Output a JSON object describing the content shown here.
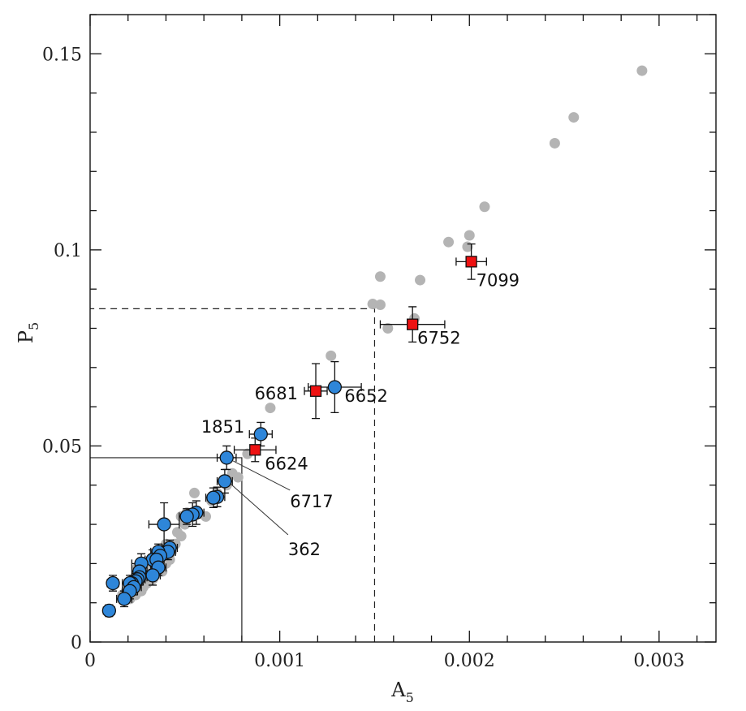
{
  "chart_data": {
    "type": "scatter",
    "title": "",
    "xlabel": {
      "main": "A",
      "sub": "5"
    },
    "ylabel": {
      "main": "P",
      "sub": "5"
    },
    "xlim": [
      0,
      0.0033
    ],
    "ylim": [
      0,
      0.16
    ],
    "x_ticks": [
      {
        "value": 0,
        "label": "0"
      },
      {
        "value": 0.001,
        "label": "0.001"
      },
      {
        "value": 0.002,
        "label": "0.002"
      },
      {
        "value": 0.003,
        "label": "0.003"
      }
    ],
    "y_ticks": [
      {
        "value": 0,
        "label": "0"
      },
      {
        "value": 0.05,
        "label": "0.05"
      },
      {
        "value": 0.1,
        "label": "0.1"
      },
      {
        "value": 0.15,
        "label": "0.15"
      }
    ],
    "x_minor_step": 0.0002,
    "y_minor_step": 0.01,
    "colors": {
      "grey": "#b4b4b4",
      "blue": "#2e86d9",
      "red": "#ee1111",
      "axis": "#111111"
    },
    "reference_lines": [
      {
        "style": "solid",
        "x": 0.0008,
        "y": 0.047
      },
      {
        "style": "dashed",
        "x": 0.0015,
        "y": 0.085
      }
    ],
    "series": [
      {
        "name": "grey points",
        "marker": "circle",
        "points": [
          [
            0.00291,
            0.1457
          ],
          [
            0.00255,
            0.1338
          ],
          [
            0.00245,
            0.1272
          ],
          [
            0.00208,
            0.111
          ],
          [
            0.002,
            0.1037
          ],
          [
            0.00199,
            0.1008
          ],
          [
            0.00189,
            0.102
          ],
          [
            0.00174,
            0.0923
          ],
          [
            0.00153,
            0.0932
          ],
          [
            0.00153,
            0.086
          ],
          [
            0.00149,
            0.0862
          ],
          [
            0.00157,
            0.08
          ],
          [
            0.00171,
            0.0825
          ],
          [
            0.00127,
            0.073
          ],
          [
            0.00095,
            0.0597
          ],
          [
            0.00083,
            0.048
          ],
          [
            0.00078,
            0.042
          ],
          [
            0.00075,
            0.043
          ],
          [
            0.00072,
            0.04
          ],
          [
            0.00067,
            0.038
          ],
          [
            0.00064,
            0.036
          ],
          [
            0.00061,
            0.032
          ],
          [
            0.00055,
            0.038
          ],
          [
            0.00054,
            0.033
          ],
          [
            0.00051,
            0.033
          ],
          [
            0.0005,
            0.03
          ],
          [
            0.00048,
            0.032
          ],
          [
            0.00048,
            0.027
          ],
          [
            0.00046,
            0.028
          ],
          [
            0.00045,
            0.025
          ],
          [
            0.00043,
            0.023
          ],
          [
            0.00042,
            0.021
          ],
          [
            0.0004,
            0.025
          ],
          [
            0.0004,
            0.02
          ],
          [
            0.00038,
            0.018
          ],
          [
            0.00037,
            0.022
          ],
          [
            0.00035,
            0.019
          ],
          [
            0.00033,
            0.016
          ],
          [
            0.00031,
            0.018
          ],
          [
            0.0003,
            0.015
          ],
          [
            0.00028,
            0.014
          ],
          [
            0.00027,
            0.013
          ],
          [
            0.00025,
            0.019
          ],
          [
            0.00024,
            0.012
          ],
          [
            0.00022,
            0.015
          ],
          [
            0.00021,
            0.011
          ],
          [
            0.00019,
            0.013
          ],
          [
            0.00017,
            0.012
          ]
        ]
      },
      {
        "name": "blue points",
        "marker": "circle",
        "points": [
          {
            "x": 0.00129,
            "y": 0.065,
            "xerr": 0.00014,
            "yerr": 0.0065,
            "label": "6652"
          },
          {
            "x": 0.0009,
            "y": 0.053,
            "xerr": 6e-05,
            "yerr": 0.003,
            "label": "1851"
          },
          {
            "x": 0.00072,
            "y": 0.047,
            "xerr": 5e-05,
            "yerr": 0.003,
            "label": "6717"
          },
          {
            "x": 0.00071,
            "y": 0.041,
            "xerr": 4e-05,
            "yerr": 0.003,
            "label": "362"
          },
          {
            "x": 0.00067,
            "y": 0.037,
            "xerr": 4e-05,
            "yerr": 0.0025
          },
          {
            "x": 0.00065,
            "y": 0.0368,
            "xerr": 4e-05,
            "yerr": 0.0025
          },
          {
            "x": 0.00056,
            "y": 0.033,
            "xerr": 4e-05,
            "yerr": 0.003
          },
          {
            "x": 0.00054,
            "y": 0.0325,
            "xerr": 4e-05,
            "yerr": 0.003
          },
          {
            "x": 0.00051,
            "y": 0.032,
            "xerr": 4e-05,
            "yerr": 0.002
          },
          {
            "x": 0.00039,
            "y": 0.03,
            "xerr": 8e-05,
            "yerr": 0.0055
          },
          {
            "x": 0.00042,
            "y": 0.024,
            "xerr": 4e-05,
            "yerr": 0.002
          },
          {
            "x": 0.00041,
            "y": 0.023,
            "xerr": 4e-05,
            "yerr": 0.002
          },
          {
            "x": 0.00036,
            "y": 0.023,
            "xerr": 4e-05,
            "yerr": 0.002
          },
          {
            "x": 0.00037,
            "y": 0.022,
            "xerr": 4e-05,
            "yerr": 0.002
          },
          {
            "x": 0.00033,
            "y": 0.021,
            "xerr": 4e-05,
            "yerr": 0.0025
          },
          {
            "x": 0.00035,
            "y": 0.021,
            "xerr": 4e-05,
            "yerr": 0.002
          },
          {
            "x": 0.00027,
            "y": 0.02,
            "xerr": 5e-05,
            "yerr": 0.0025
          },
          {
            "x": 0.00036,
            "y": 0.019,
            "xerr": 4e-05,
            "yerr": 0.002
          },
          {
            "x": 0.00026,
            "y": 0.018,
            "xerr": 4e-05,
            "yerr": 0.002
          },
          {
            "x": 0.00033,
            "y": 0.017,
            "xerr": 4e-05,
            "yerr": 0.0025
          },
          {
            "x": 0.00026,
            "y": 0.0165,
            "xerr": 4e-05,
            "yerr": 0.002
          },
          {
            "x": 0.00025,
            "y": 0.016,
            "xerr": 4e-05,
            "yerr": 0.002
          },
          {
            "x": 0.00024,
            "y": 0.0155,
            "xerr": 4e-05,
            "yerr": 0.002
          },
          {
            "x": 0.00022,
            "y": 0.015,
            "xerr": 4e-05,
            "yerr": 0.002
          },
          {
            "x": 0.00021,
            "y": 0.015,
            "xerr": 4e-05,
            "yerr": 0.002
          },
          {
            "x": 0.00012,
            "y": 0.015,
            "xerr": 3e-05,
            "yerr": 0.002
          },
          {
            "x": 0.00023,
            "y": 0.014,
            "xerr": 4e-05,
            "yerr": 0.002
          },
          {
            "x": 0.00021,
            "y": 0.013,
            "xerr": 4e-05,
            "yerr": 0.002
          },
          {
            "x": 0.00018,
            "y": 0.011,
            "xerr": 4e-05,
            "yerr": 0.002
          },
          {
            "x": 0.0001,
            "y": 0.008,
            "xerr": 3e-05,
            "yerr": 0.0015
          }
        ]
      },
      {
        "name": "red points",
        "marker": "square",
        "points": [
          {
            "x": 0.00201,
            "y": 0.097,
            "xerr": 8e-05,
            "yerr": 0.0045,
            "label": "7099"
          },
          {
            "x": 0.0017,
            "y": 0.081,
            "xerr": 0.00017,
            "yerr": 0.0045,
            "label": "6752"
          },
          {
            "x": 0.00119,
            "y": 0.064,
            "xerr": 6e-05,
            "yerr": 0.007,
            "label": "6681"
          },
          {
            "x": 0.00087,
            "y": 0.049,
            "xerr": 0.00011,
            "yerr": 0.003,
            "label": "6624"
          }
        ]
      }
    ]
  }
}
